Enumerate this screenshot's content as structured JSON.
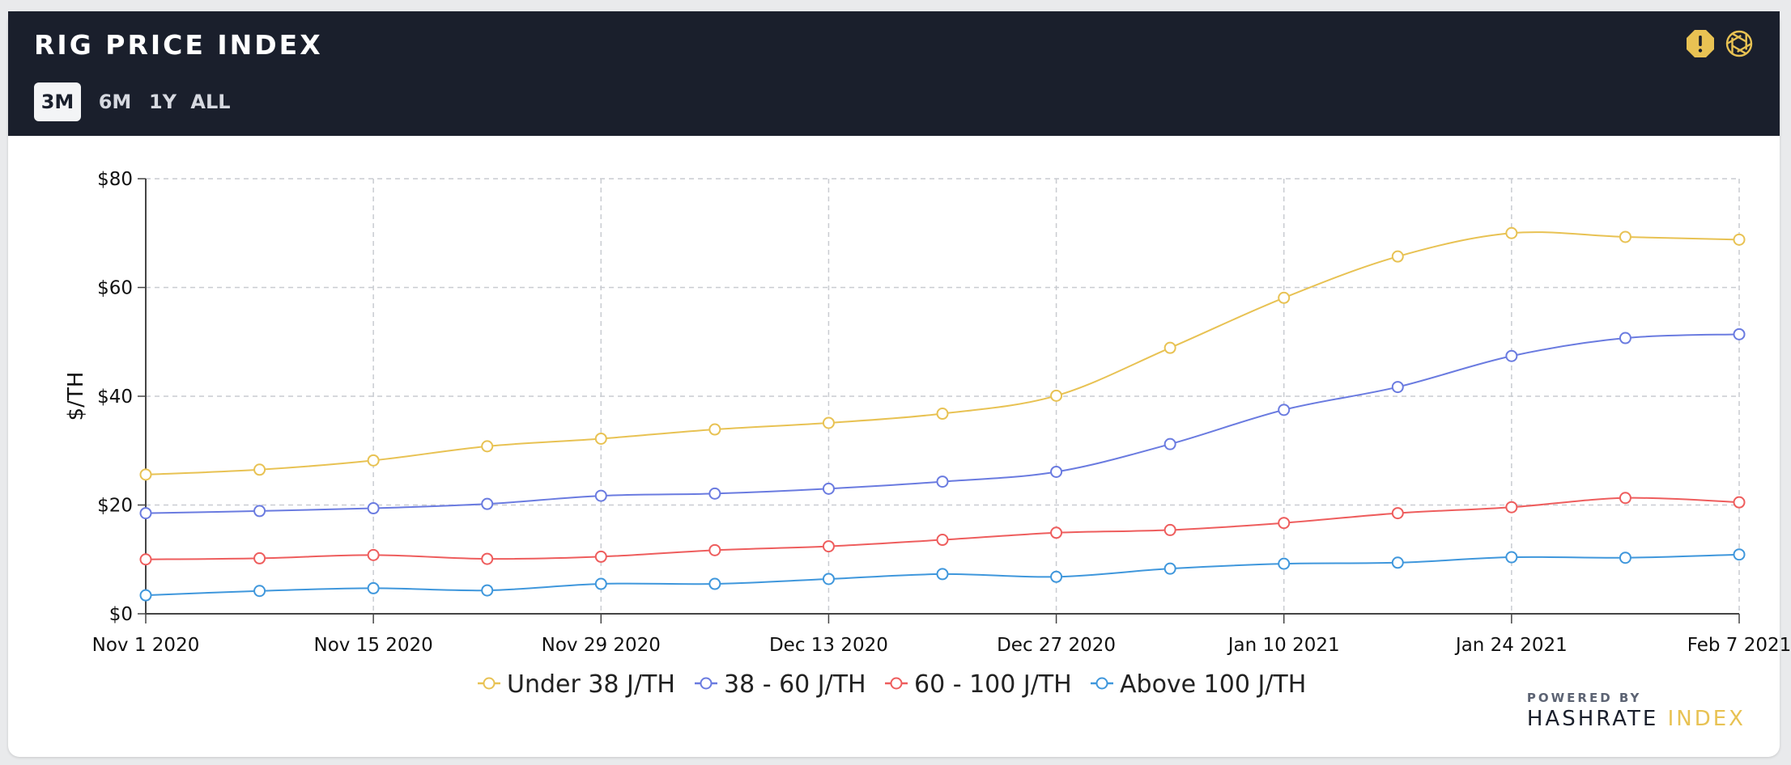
{
  "header": {
    "title": "RIG PRICE INDEX",
    "range_tabs": [
      {
        "label": "3M",
        "active": true
      },
      {
        "label": "6M",
        "active": false
      },
      {
        "label": "1Y",
        "active": false
      },
      {
        "label": "ALL",
        "active": false
      }
    ],
    "icons": [
      "alert-icon",
      "aperture-icon"
    ]
  },
  "brand": {
    "powered_by": "POWERED BY",
    "name_primary": "HASHRATE",
    "name_accent": "INDEX",
    "accent_color": "#e8c253"
  },
  "chart_data": {
    "type": "line",
    "ylabel": "$/TH",
    "xlabel": "",
    "ylim": [
      0,
      80
    ],
    "y_ticks": [
      0,
      20,
      40,
      60,
      80
    ],
    "y_tick_labels": [
      "$0",
      "$20",
      "$40",
      "$60",
      "$80"
    ],
    "x": [
      "2020-11-01",
      "2020-11-08",
      "2020-11-15",
      "2020-11-22",
      "2020-11-29",
      "2020-12-06",
      "2020-12-13",
      "2020-12-20",
      "2020-12-27",
      "2021-01-03",
      "2021-01-10",
      "2021-01-17",
      "2021-01-24",
      "2021-01-31",
      "2021-02-07"
    ],
    "x_tick_labels": [
      "Nov 1 2020",
      "Nov 15 2020",
      "Nov 29 2020",
      "Dec 13 2020",
      "Dec 27 2020",
      "Jan 10 2021",
      "Jan 24 2021",
      "Feb 7 2021"
    ],
    "grid": true,
    "legend_position": "bottom",
    "series": [
      {
        "name": "Under 38 J/TH",
        "color": "#e8c253",
        "values": [
          25.6,
          26.5,
          28.2,
          30.8,
          32.2,
          33.9,
          35.1,
          36.8,
          40.1,
          48.9,
          58.1,
          65.7,
          70.0,
          69.3,
          68.8
        ]
      },
      {
        "name": "38 - 60 J/TH",
        "color": "#6a7be0",
        "values": [
          18.5,
          18.9,
          19.4,
          20.2,
          21.7,
          22.1,
          23.0,
          24.3,
          26.1,
          31.2,
          37.5,
          41.7,
          47.4,
          50.7,
          51.4
        ]
      },
      {
        "name": "60 - 100 J/TH",
        "color": "#ee5d5d",
        "values": [
          10.0,
          10.2,
          10.8,
          10.1,
          10.5,
          11.7,
          12.4,
          13.6,
          14.9,
          15.4,
          16.7,
          18.5,
          19.6,
          21.3,
          20.5
        ]
      },
      {
        "name": "Above 100 J/TH",
        "color": "#3f97dc",
        "values": [
          3.4,
          4.2,
          4.7,
          4.3,
          5.5,
          5.5,
          6.4,
          7.3,
          6.8,
          8.3,
          9.2,
          9.4,
          10.4,
          10.3,
          10.9
        ]
      }
    ]
  }
}
